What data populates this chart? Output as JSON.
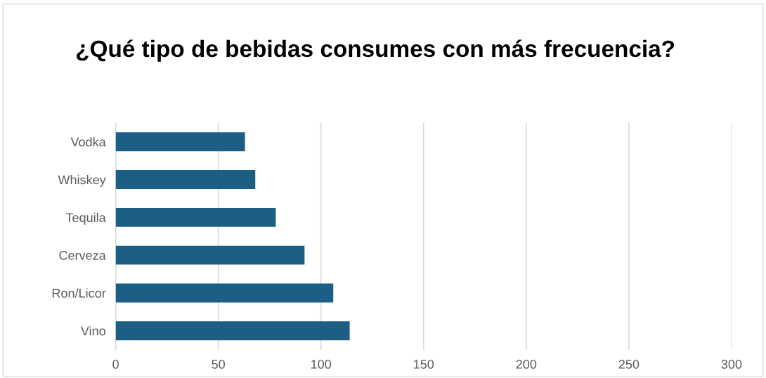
{
  "chart_data": {
    "type": "bar",
    "orientation": "horizontal",
    "title": "¿Qué tipo de bebidas consumes con más frecuencia?",
    "categories": [
      "Vodka",
      "Whiskey",
      "Tequila",
      "Cerveza",
      "Ron/Licor",
      "Vino"
    ],
    "values": [
      63,
      68,
      78,
      92,
      106,
      114
    ],
    "color": "#1d5f84",
    "xlim": [
      0,
      300
    ],
    "xticks": [
      0,
      50,
      100,
      150,
      200,
      250,
      300
    ],
    "grid": "x",
    "legend": false
  }
}
